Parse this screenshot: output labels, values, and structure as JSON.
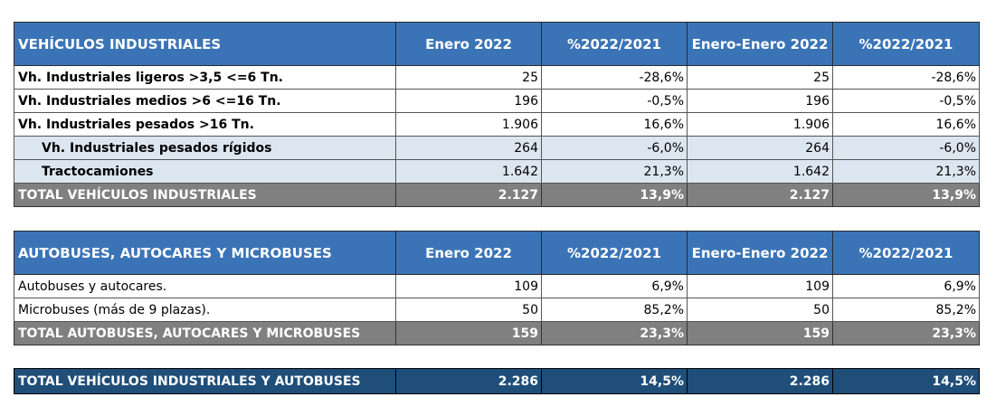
{
  "headers": [
    "Enero 2022",
    "%2022/2021",
    "Enero-Enero 2022",
    "%2022/2021"
  ],
  "industriales": {
    "title": "VEHÍCULOS INDUSTRIALES",
    "rows": [
      {
        "label": "Vh. Industriales ligeros >3,5 <=6 Tn.",
        "v": [
          "25",
          "-28,6%",
          "25",
          "-28,6%"
        ]
      },
      {
        "label": "Vh. Industriales medios >6  <=16 Tn.",
        "v": [
          "196",
          "-0,5%",
          "196",
          "-0,5%"
        ]
      },
      {
        "label": "Vh. Industriales  pesados >16 Tn.",
        "v": [
          "1.906",
          "16,6%",
          "1.906",
          "16,6%"
        ]
      },
      {
        "label": "Vh. Industriales pesados rígidos",
        "v": [
          "264",
          "-6,0%",
          "264",
          "-6,0%"
        ]
      },
      {
        "label": "Tractocamiones",
        "v": [
          "1.642",
          "21,3%",
          "1.642",
          "21,3%"
        ]
      }
    ],
    "total": {
      "label": "TOTAL VEHÍCULOS INDUSTRIALES",
      "v": [
        "2.127",
        "13,9%",
        "2.127",
        "13,9%"
      ]
    }
  },
  "autobuses": {
    "title": "AUTOBUSES, AUTOCARES Y MICROBUSES",
    "rows": [
      {
        "label": "Autobuses y autocares.",
        "v": [
          "109",
          "6,9%",
          "109",
          "6,9%"
        ]
      },
      {
        "label": "Microbuses (más de 9 plazas).",
        "v": [
          "50",
          "85,2%",
          "50",
          "85,2%"
        ]
      }
    ],
    "total": {
      "label": "TOTAL AUTOBUSES, AUTOCARES Y MICROBUSES",
      "v": [
        "159",
        "23,3%",
        "159",
        "23,3%"
      ]
    }
  },
  "grand_total": {
    "label": "TOTAL VEHÍCULOS INDUSTRIALES Y AUTOBUSES",
    "v": [
      "2.286",
      "14,5%",
      "2.286",
      "14,5%"
    ]
  },
  "colors": {
    "header_blue": "#3b74b6",
    "sub_row": "#dce6f1",
    "total_gray": "#808080",
    "grand_navy": "#1f4e79"
  }
}
